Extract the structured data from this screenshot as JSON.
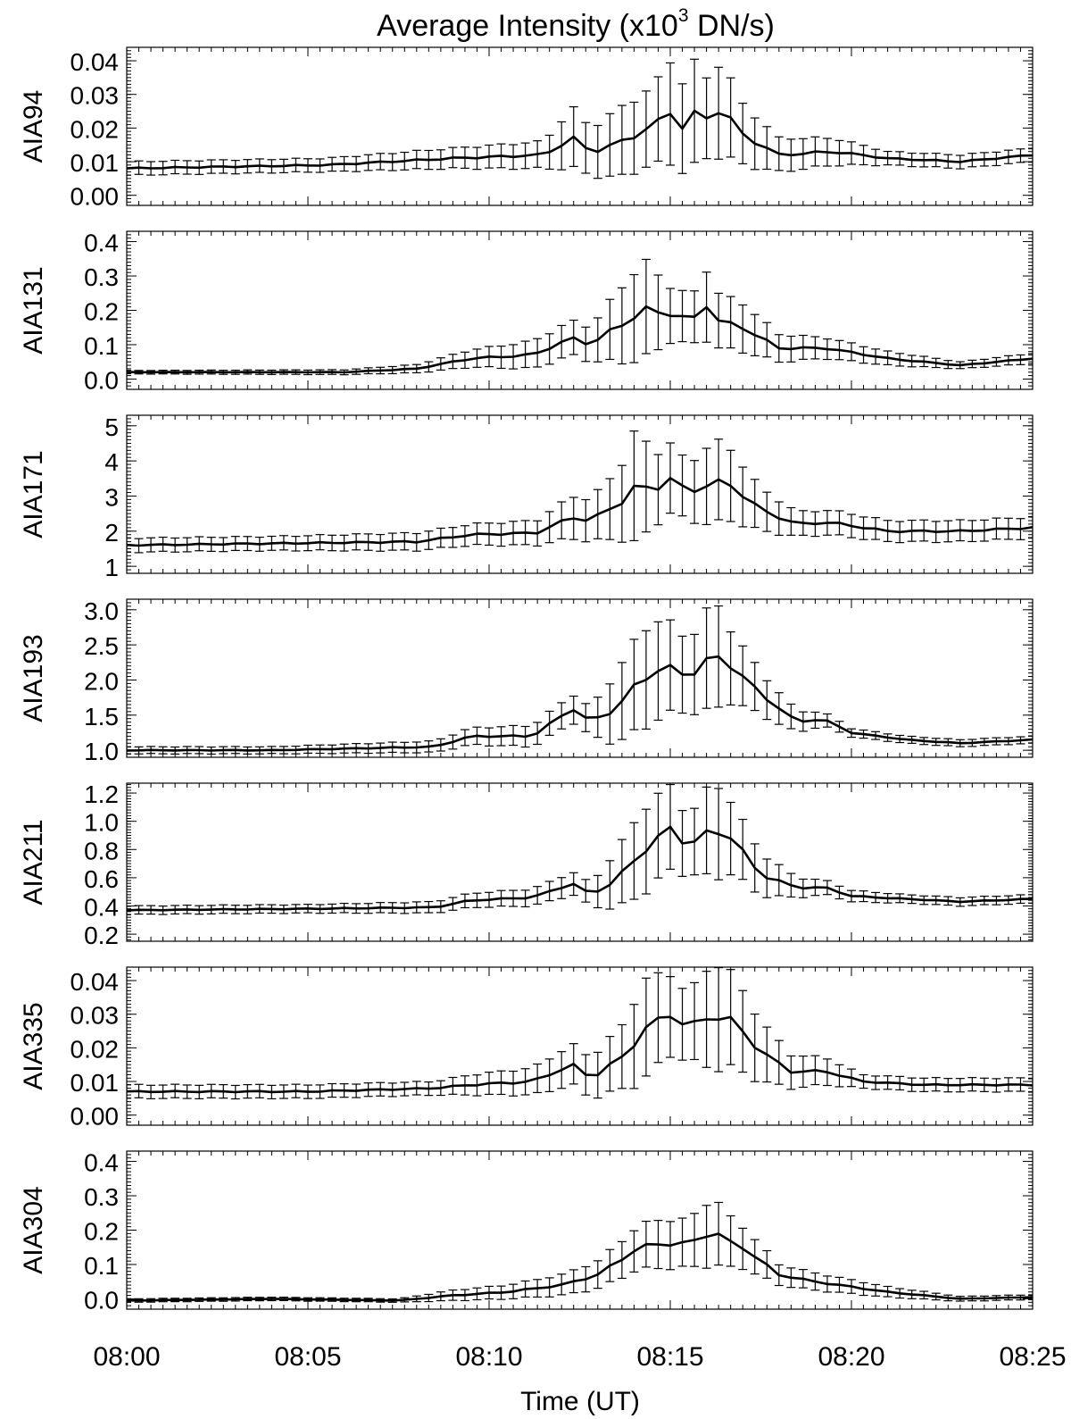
{
  "figure": {
    "title_main": "Average Intensity (x10",
    "title_sup": "3",
    "title_end": " DN/s)",
    "xlabel": "Time (UT)",
    "xticks": [
      "08:00",
      "08:05",
      "08:10",
      "08:15",
      "08:20",
      "08:25"
    ]
  },
  "chart_data": [
    {
      "type": "line",
      "name": "AIA94",
      "ylim": [
        -0.003,
        0.044
      ],
      "ticks": [
        0.0,
        0.01,
        0.02,
        0.03,
        0.04
      ],
      "tick_labels": [
        "0.00",
        "0.01",
        "0.02",
        "0.03",
        "0.04"
      ],
      "x": [
        0,
        5.5,
        9,
        11.5,
        12.3,
        12.8,
        13.5,
        14.2,
        14.6,
        15.1,
        15.3,
        15.6,
        16,
        16.4,
        17,
        18,
        19.5,
        21,
        23,
        25
      ],
      "y": [
        0.008,
        0.009,
        0.011,
        0.012,
        0.017,
        0.013,
        0.015,
        0.019,
        0.021,
        0.026,
        0.02,
        0.024,
        0.023,
        0.026,
        0.018,
        0.012,
        0.013,
        0.011,
        0.01,
        0.012
      ],
      "err": [
        0.002,
        0.002,
        0.003,
        0.004,
        0.009,
        0.007,
        0.01,
        0.011,
        0.012,
        0.016,
        0.013,
        0.016,
        0.012,
        0.014,
        0.009,
        0.005,
        0.004,
        0.002,
        0.002,
        0.002
      ]
    },
    {
      "type": "line",
      "name": "AIA131",
      "ylim": [
        -0.03,
        0.43
      ],
      "ticks": [
        0.0,
        0.1,
        0.2,
        0.3,
        0.4
      ],
      "tick_labels": [
        "0.0",
        "0.1",
        "0.2",
        "0.3",
        "0.4"
      ],
      "x": [
        0,
        6,
        8,
        9.5,
        11.2,
        12.3,
        12.8,
        13.8,
        14.3,
        15,
        15.6,
        16.1,
        16.3,
        17,
        18,
        19.3,
        21,
        23,
        25
      ],
      "y": [
        0.02,
        0.02,
        0.03,
        0.06,
        0.07,
        0.12,
        0.1,
        0.17,
        0.2,
        0.19,
        0.17,
        0.23,
        0.17,
        0.15,
        0.09,
        0.09,
        0.06,
        0.04,
        0.06
      ],
      "err": [
        0.005,
        0.007,
        0.012,
        0.025,
        0.04,
        0.05,
        0.05,
        0.12,
        0.14,
        0.08,
        0.07,
        0.11,
        0.08,
        0.07,
        0.04,
        0.03,
        0.02,
        0.01,
        0.015
      ]
    },
    {
      "type": "line",
      "name": "AIA171",
      "ylim": [
        0.8,
        5.3
      ],
      "ticks": [
        1,
        2,
        3,
        4,
        5
      ],
      "tick_labels": [
        "1",
        "2",
        "3",
        "4",
        "5"
      ],
      "x": [
        0,
        4,
        8,
        9.5,
        11.3,
        12.3,
        12.8,
        13.6,
        14.1,
        14.5,
        15,
        15.5,
        16.2,
        16.7,
        17.5,
        18.5,
        19.4,
        21,
        23,
        25
      ],
      "y": [
        1.6,
        1.65,
        1.7,
        1.9,
        1.95,
        2.4,
        2.3,
        2.8,
        3.3,
        3.15,
        3.5,
        3.1,
        3.4,
        3.3,
        2.6,
        2.2,
        2.25,
        2.0,
        2.0,
        2.1
      ],
      "err": [
        0.2,
        0.2,
        0.25,
        0.3,
        0.35,
        0.6,
        0.6,
        1.0,
        1.7,
        1.0,
        1.0,
        0.8,
        1.2,
        1.0,
        0.6,
        0.35,
        0.35,
        0.3,
        0.3,
        0.3
      ]
    },
    {
      "type": "line",
      "name": "AIA193",
      "ylim": [
        0.9,
        3.15
      ],
      "ticks": [
        1.0,
        1.5,
        2.0,
        2.5,
        3.0
      ],
      "tick_labels": [
        "1.0",
        "1.5",
        "2.0",
        "2.5",
        "3.0"
      ],
      "x": [
        0,
        4,
        8.5,
        9.5,
        11.2,
        12.3,
        12.8,
        13.5,
        14.2,
        14.8,
        15.5,
        16.2,
        16.7,
        17.5,
        18.5,
        19.2,
        20,
        21.5,
        23,
        25
      ],
      "y": [
        1.0,
        1.0,
        1.05,
        1.2,
        1.2,
        1.6,
        1.4,
        1.6,
        2.0,
        2.2,
        2.05,
        2.35,
        2.2,
        1.8,
        1.4,
        1.45,
        1.25,
        1.15,
        1.1,
        1.15
      ],
      "err": [
        0.05,
        0.05,
        0.08,
        0.12,
        0.15,
        0.2,
        0.2,
        0.5,
        0.7,
        0.7,
        0.5,
        0.8,
        0.5,
        0.3,
        0.15,
        0.1,
        0.06,
        0.05,
        0.05,
        0.05
      ]
    },
    {
      "type": "line",
      "name": "AIA211",
      "ylim": [
        0.15,
        1.27
      ],
      "ticks": [
        0.2,
        0.4,
        0.6,
        0.8,
        1.0,
        1.2
      ],
      "tick_labels": [
        "0.2",
        "0.4",
        "0.6",
        "0.8",
        "1.0",
        "1.2"
      ],
      "x": [
        0,
        5,
        8.5,
        9.5,
        11.2,
        12.3,
        12.8,
        13.5,
        14.2,
        15,
        15.5,
        16.2,
        16.7,
        17.5,
        18.5,
        19.3,
        20,
        21.5,
        23,
        25
      ],
      "y": [
        0.37,
        0.38,
        0.39,
        0.44,
        0.46,
        0.56,
        0.48,
        0.58,
        0.78,
        0.95,
        0.82,
        0.95,
        0.88,
        0.62,
        0.53,
        0.53,
        0.47,
        0.45,
        0.43,
        0.45
      ],
      "err": [
        0.03,
        0.03,
        0.04,
        0.05,
        0.06,
        0.08,
        0.08,
        0.2,
        0.3,
        0.3,
        0.2,
        0.35,
        0.25,
        0.15,
        0.07,
        0.05,
        0.04,
        0.03,
        0.03,
        0.03
      ]
    },
    {
      "type": "line",
      "name": "AIA335",
      "ylim": [
        -0.003,
        0.044
      ],
      "ticks": [
        0.0,
        0.01,
        0.02,
        0.03,
        0.04
      ],
      "tick_labels": [
        "0.00",
        "0.01",
        "0.02",
        "0.03",
        "0.04"
      ],
      "x": [
        0,
        5,
        8.5,
        9.5,
        11.2,
        12.3,
        12.8,
        13.8,
        14.2,
        14.5,
        15,
        15.5,
        16.2,
        16.7,
        17.5,
        18.3,
        19.3,
        20.3,
        22,
        25
      ],
      "y": [
        0.007,
        0.007,
        0.008,
        0.009,
        0.01,
        0.015,
        0.011,
        0.018,
        0.025,
        0.027,
        0.03,
        0.026,
        0.03,
        0.028,
        0.019,
        0.013,
        0.013,
        0.01,
        0.009,
        0.009
      ],
      "err": [
        0.002,
        0.002,
        0.002,
        0.003,
        0.004,
        0.006,
        0.006,
        0.01,
        0.015,
        0.014,
        0.012,
        0.01,
        0.016,
        0.014,
        0.009,
        0.005,
        0.004,
        0.002,
        0.002,
        0.002
      ]
    },
    {
      "type": "line",
      "name": "AIA304",
      "ylim": [
        -0.03,
        0.43
      ],
      "ticks": [
        0.0,
        0.1,
        0.2,
        0.3,
        0.4
      ],
      "tick_labels": [
        "0.0",
        "0.1",
        "0.2",
        "0.3",
        "0.4"
      ],
      "x": [
        0,
        4,
        7.5,
        9,
        10.5,
        12,
        13,
        14,
        14.5,
        15,
        15.5,
        16.2,
        16.5,
        17,
        18,
        19,
        21,
        23,
        25
      ],
      "y": [
        -0.005,
        0.0,
        -0.005,
        0.01,
        0.02,
        0.04,
        0.07,
        0.14,
        0.16,
        0.16,
        0.16,
        0.2,
        0.17,
        0.15,
        0.07,
        0.05,
        0.02,
        0.0,
        0.005
      ],
      "err": [
        0.005,
        0.005,
        0.005,
        0.015,
        0.02,
        0.03,
        0.04,
        0.06,
        0.07,
        0.07,
        0.07,
        0.1,
        0.08,
        0.06,
        0.03,
        0.025,
        0.015,
        0.007,
        0.007
      ]
    }
  ]
}
